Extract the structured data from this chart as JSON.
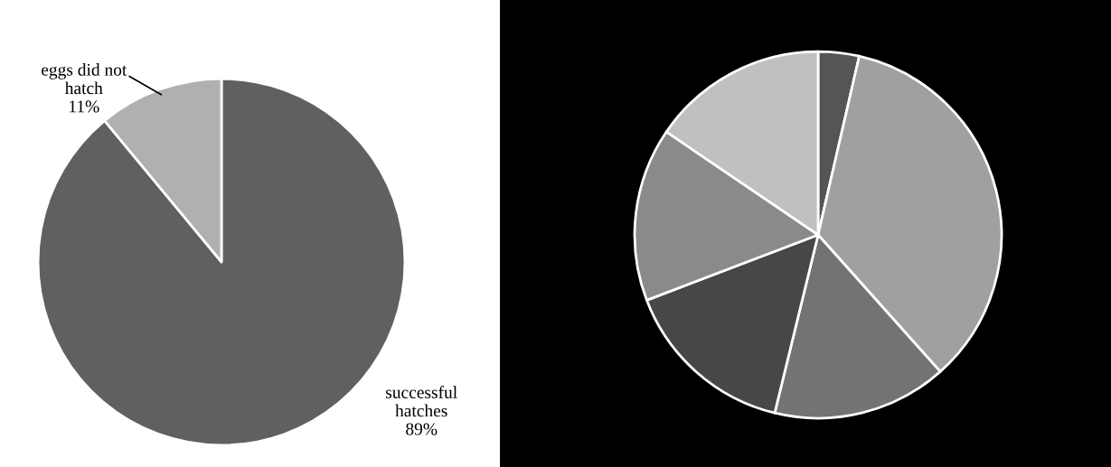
{
  "chart_data": [
    {
      "type": "pie",
      "categories": [
        "successful\nhatches",
        "eggs did not\nhatch"
      ],
      "values": [
        89,
        11
      ],
      "colors": [
        "#606060",
        "#b0b0b0"
      ],
      "value_labels": [
        "89%",
        "11%"
      ]
    },
    {
      "type": "pie",
      "categories": [
        null,
        null,
        null,
        null,
        null,
        null
      ],
      "values": [
        3.6,
        34.8,
        15.4,
        15.4,
        15.3,
        15.5
      ],
      "colors": [
        "#555555",
        "#a0a0a0",
        "#737373",
        "#474747",
        "#8a8a8a",
        "#c0c0c0"
      ]
    }
  ]
}
